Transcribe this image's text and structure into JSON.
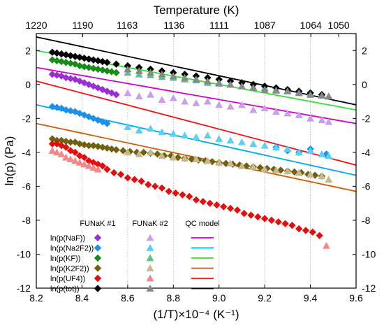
{
  "chart_data": {
    "type": "scatter",
    "title": "",
    "xlabel": "(1/T)×10⁻⁴ (K⁻¹)",
    "ylabel": "ln(p) (Pa)",
    "top_axis_label": "Temperature (K)",
    "xlim": [
      8.2,
      9.6
    ],
    "ylim": [
      -12,
      3
    ],
    "x_ticks": [
      "8.2",
      "8.4",
      "8.6",
      "8.8",
      "9.0",
      "9.2",
      "9.4",
      "9.6"
    ],
    "y_ticks": [
      "-12",
      "-10",
      "-8",
      "-6",
      "-4",
      "-2",
      "0",
      "2"
    ],
    "top_ticks": [
      {
        "x": 8.2,
        "label": "1220"
      },
      {
        "x": 8.403,
        "label": "1190"
      },
      {
        "x": 8.598,
        "label": "1163"
      },
      {
        "x": 8.803,
        "label": "1136"
      },
      {
        "x": 9.001,
        "label": "1111"
      },
      {
        "x": 9.2,
        "label": "1087"
      },
      {
        "x": 9.402,
        "label": "1064"
      },
      {
        "x": 9.524,
        "label": "1050"
      }
    ],
    "grid": "vertical dotted at x ticks",
    "legend": {
      "placement": "bottom-left",
      "headers": [
        "FUNaK #1",
        "FUNaK #2",
        "QC model"
      ],
      "entries": [
        {
          "label": "ln(p(NaF))",
          "color1": "#9b30d0",
          "color2": "#c9a0e8",
          "line_color": "#cc00cc"
        },
        {
          "label": "ln(p(Na2F2))",
          "color1": "#1e90e6",
          "color2": "#5bd0f0",
          "line_color": "#00a8f0"
        },
        {
          "label": "ln(p(KF))",
          "color1": "#1a8a1a",
          "color2": "#5fc08a",
          "line_color": "#33dd33"
        },
        {
          "label": "ln(p(K2F2))",
          "color1": "#706010",
          "color2": "#c8b890",
          "line_color": "#d05a00"
        },
        {
          "label": "ln(p(UF4))",
          "color1": "#e01010",
          "color2": "#f08a8a",
          "line_color": "#ee1111"
        },
        {
          "label": "ln(p(tot))",
          "color1": "#000000",
          "color2": "#888888",
          "line_color": "#000000"
        }
      ]
    },
    "series": [
      {
        "name": "ln(p(NaF)) FUNaK #1",
        "marker": "diamond",
        "color": "#9b30d0",
        "x": [
          8.27,
          8.29,
          8.31,
          8.33,
          8.35,
          8.37,
          8.39,
          8.41,
          8.43,
          8.45,
          8.47,
          8.49,
          8.51,
          8.53,
          8.55
        ],
        "y": [
          0.6,
          0.55,
          0.5,
          0.4,
          0.35,
          0.3,
          0.2,
          0.1,
          0.0,
          -0.1,
          -0.2,
          -0.3,
          -0.4,
          -0.5,
          -0.6
        ]
      },
      {
        "name": "ln(p(NaF)) FUNaK #2",
        "marker": "triangle",
        "color": "#c9a0e8",
        "x": [
          8.6,
          8.65,
          8.7,
          8.75,
          8.8,
          8.85,
          8.9,
          8.95,
          9.0,
          9.05,
          9.1,
          9.15,
          9.2,
          9.25,
          9.3,
          9.35,
          9.4,
          9.45,
          9.48
        ],
        "y": [
          -0.5,
          -0.7,
          -0.6,
          -0.9,
          -0.8,
          -1.0,
          -1.1,
          -1.0,
          -1.2,
          -1.3,
          -1.2,
          -1.5,
          -1.4,
          -1.6,
          -1.7,
          -1.8,
          -2.0,
          -2.1,
          -2.2
        ]
      },
      {
        "name": "ln(p(Na2F2)) FUNaK #1",
        "marker": "diamond",
        "color": "#1e90e6",
        "x": [
          8.27,
          8.29,
          8.31,
          8.33,
          8.35,
          8.37,
          8.39,
          8.41,
          8.43,
          8.45,
          8.47,
          8.49,
          8.51,
          9.25,
          9.3,
          9.35,
          9.4,
          9.47
        ],
        "y": [
          -1.3,
          -1.35,
          -1.4,
          -1.5,
          -1.55,
          -1.6,
          -1.7,
          -1.8,
          -1.9,
          -2.0,
          -2.1,
          -2.2,
          -2.3,
          -3.7,
          -3.9,
          -4.0,
          -3.8,
          -4.1
        ]
      },
      {
        "name": "ln(p(Na2F2)) FUNaK #2",
        "marker": "triangle",
        "color": "#5bd0f0",
        "x": [
          8.6,
          8.65,
          8.7,
          8.75,
          8.8,
          8.85,
          8.9,
          8.95,
          9.0,
          9.05,
          9.1,
          9.15,
          9.2,
          9.25,
          9.3,
          9.35,
          9.4,
          9.45,
          9.48
        ],
        "y": [
          -2.5,
          -2.7,
          -2.6,
          -2.8,
          -2.9,
          -3.0,
          -3.1,
          -3.0,
          -3.2,
          -3.3,
          -3.4,
          -3.5,
          -3.6,
          -3.7,
          -3.8,
          -4.0,
          -3.9,
          -4.1,
          -4.2
        ]
      },
      {
        "name": "ln(p(KF)) FUNaK #1",
        "marker": "diamond",
        "color": "#1a8a1a",
        "x": [
          8.27,
          8.29,
          8.31,
          8.33,
          8.35,
          8.37,
          8.39,
          8.41,
          8.43,
          8.45,
          8.47,
          8.49,
          8.51,
          8.53,
          8.55
        ],
        "y": [
          1.45,
          1.4,
          1.35,
          1.3,
          1.25,
          1.2,
          1.1,
          1.05,
          1.0,
          0.95,
          0.9,
          0.85,
          0.8,
          0.75,
          0.7
        ]
      },
      {
        "name": "ln(p(KF)) FUNaK #2",
        "marker": "triangle",
        "color": "#5fc08a",
        "x": [
          8.6,
          8.65,
          8.7,
          8.75,
          8.8,
          8.85,
          8.9,
          8.95,
          9.0,
          9.05,
          9.1,
          9.15,
          9.2,
          9.25,
          9.3,
          9.35,
          9.4,
          9.45,
          9.48
        ],
        "y": [
          0.7,
          0.6,
          0.55,
          0.45,
          0.4,
          0.3,
          0.25,
          0.1,
          0.05,
          0.0,
          -0.1,
          -0.15,
          -0.2,
          -0.3,
          -0.35,
          -0.45,
          -0.5,
          -0.6,
          -0.7
        ]
      },
      {
        "name": "ln(p(K2F2)) FUNaK #1",
        "marker": "diamond",
        "color": "#706010",
        "x": [
          8.27,
          8.29,
          8.31,
          8.33,
          8.35,
          8.37,
          8.39,
          8.41,
          8.43,
          8.45,
          8.47,
          8.49,
          8.51,
          8.53,
          8.55,
          8.58,
          8.61,
          8.64,
          8.67,
          8.7,
          8.73,
          8.76,
          8.79,
          8.82,
          8.85,
          8.88,
          8.91,
          8.94,
          8.97,
          9.0,
          9.03,
          9.06,
          9.09,
          9.12,
          9.15,
          9.18,
          9.21,
          9.24,
          9.27,
          9.3,
          9.33,
          9.36,
          9.39,
          9.42,
          9.45
        ],
        "y": [
          -3.2,
          -3.3,
          -3.3,
          -3.35,
          -3.4,
          -3.4,
          -3.5,
          -3.55,
          -3.6,
          -3.6,
          -3.65,
          -3.7,
          -3.75,
          -3.8,
          -3.85,
          -3.9,
          -3.95,
          -4.0,
          -4.0,
          -4.05,
          -4.1,
          -4.2,
          -4.2,
          -4.3,
          -4.35,
          -4.4,
          -4.45,
          -4.5,
          -4.55,
          -4.6,
          -4.65,
          -4.7,
          -4.75,
          -4.8,
          -4.85,
          -4.9,
          -4.95,
          -5.0,
          -5.05,
          -5.1,
          -5.15,
          -5.2,
          -5.3,
          -5.35,
          -5.4
        ]
      },
      {
        "name": "ln(p(K2F2)) FUNaK #2",
        "marker": "triangle",
        "color": "#c8b890",
        "x": [
          8.6,
          8.65,
          8.7,
          8.75,
          8.8,
          8.85,
          8.9,
          8.95,
          9.0,
          9.05,
          9.1,
          9.15,
          9.2,
          9.25,
          9.3,
          9.35,
          9.4,
          9.45,
          9.48
        ],
        "y": [
          -4.0,
          -4.1,
          -4.0,
          -4.2,
          -4.3,
          -4.35,
          -4.4,
          -4.5,
          -4.6,
          -4.65,
          -4.8,
          -4.85,
          -5.0,
          -5.05,
          -5.1,
          -5.2,
          -5.3,
          -5.4,
          -5.6
        ]
      },
      {
        "name": "ln(p(UF4)) FUNaK #1",
        "marker": "diamond",
        "color": "#e01010",
        "x": [
          8.27,
          8.29,
          8.31,
          8.33,
          8.35,
          8.37,
          8.39,
          8.41,
          8.43,
          8.45,
          8.47,
          8.49,
          8.51,
          8.54,
          8.57,
          8.6,
          8.63,
          8.66,
          8.69,
          8.72,
          8.75,
          8.78,
          8.81,
          8.84,
          8.87,
          8.9,
          8.93,
          8.96,
          8.99,
          9.02,
          9.05,
          9.08,
          9.11,
          9.14,
          9.17,
          9.2,
          9.23,
          9.26,
          9.29,
          9.32,
          9.35,
          9.38,
          9.41,
          9.44
        ],
        "y": [
          -3.5,
          -3.5,
          -3.6,
          -3.7,
          -3.9,
          -4.0,
          -4.2,
          -4.3,
          -4.5,
          -4.6,
          -4.7,
          -4.8,
          -5.0,
          -5.2,
          -5.3,
          -5.5,
          -5.6,
          -5.7,
          -5.9,
          -6.0,
          -6.1,
          -6.3,
          -6.4,
          -6.5,
          -6.6,
          -6.8,
          -6.9,
          -7.0,
          -7.1,
          -7.2,
          -7.3,
          -7.4,
          -7.6,
          -7.7,
          -7.8,
          -7.9,
          -8.0,
          -8.1,
          -8.2,
          -8.3,
          -8.5,
          -8.6,
          -8.7,
          -8.9
        ]
      },
      {
        "name": "ln(p(UF4)) FUNaK #2",
        "marker": "triangle",
        "color": "#f08a8a",
        "x": [
          8.27,
          8.29,
          8.31,
          8.33,
          8.35,
          8.37,
          8.39,
          8.41,
          8.43,
          8.45,
          8.47,
          9.47
        ],
        "y": [
          -3.9,
          -4.0,
          -4.1,
          -4.3,
          -4.4,
          -4.5,
          -4.6,
          -4.7,
          -4.8,
          -4.9,
          -5.0,
          -9.5
        ]
      },
      {
        "name": "ln(p(tot)) FUNaK #1",
        "marker": "diamond",
        "color": "#000000",
        "x": [
          8.27,
          8.29,
          8.31,
          8.33,
          8.35,
          8.37,
          8.39,
          8.41,
          8.43,
          8.45,
          8.47,
          8.49,
          8.51,
          8.55,
          8.6,
          8.65,
          8.7,
          8.75,
          8.8,
          8.85,
          8.9,
          8.95,
          9.0,
          9.05,
          9.1,
          9.15,
          9.2,
          9.25,
          9.3,
          9.35,
          9.4,
          9.45
        ],
        "y": [
          1.9,
          1.85,
          1.8,
          1.75,
          1.7,
          1.65,
          1.6,
          1.55,
          1.5,
          1.45,
          1.4,
          1.35,
          1.3,
          1.2,
          1.1,
          1.0,
          0.9,
          0.8,
          0.7,
          0.6,
          0.5,
          0.4,
          0.3,
          0.2,
          0.1,
          0.0,
          -0.1,
          -0.2,
          -0.3,
          -0.4,
          -0.5,
          -0.6
        ]
      },
      {
        "name": "ln(p(tot)) FUNaK #2",
        "marker": "triangle",
        "color": "#888888",
        "x": [
          8.6,
          8.65,
          8.7,
          8.75,
          8.8,
          8.85,
          8.9,
          8.95,
          9.0,
          9.05,
          9.1,
          9.15,
          9.2,
          9.25,
          9.3,
          9.35,
          9.4,
          9.45,
          9.48
        ],
        "y": [
          0.9,
          0.8,
          0.7,
          0.6,
          0.5,
          0.4,
          0.3,
          0.2,
          0.1,
          0.0,
          -0.1,
          -0.2,
          -0.3,
          -0.35,
          -0.4,
          -0.5,
          -0.6,
          -0.65,
          -0.7
        ]
      }
    ],
    "model_lines": [
      {
        "name": "ln(p(NaF)) QC model",
        "color": "#cc00cc",
        "x": [
          8.2,
          9.6
        ],
        "y": [
          1.0,
          -2.3
        ]
      },
      {
        "name": "ln(p(Na2F2)) QC model",
        "color": "#00a8f0",
        "x": [
          8.2,
          9.6
        ],
        "y": [
          -1.2,
          -5.35
        ]
      },
      {
        "name": "ln(p(KF)) QC model",
        "color": "#33dd33",
        "x": [
          8.2,
          9.6
        ],
        "y": [
          2.0,
          -1.5
        ]
      },
      {
        "name": "ln(p(K2F2)) QC model",
        "color": "#d05a00",
        "x": [
          8.2,
          9.6
        ],
        "y": [
          -2.3,
          -6.3
        ]
      },
      {
        "name": "ln(p(UF4)) QC model",
        "color": "#ee1111",
        "x": [
          8.2,
          9.6
        ],
        "y": [
          0.2,
          -4.75
        ]
      },
      {
        "name": "ln(p(tot)) QC model",
        "color": "#000000",
        "x": [
          8.2,
          9.6
        ],
        "y": [
          2.8,
          -1.2
        ]
      }
    ]
  }
}
